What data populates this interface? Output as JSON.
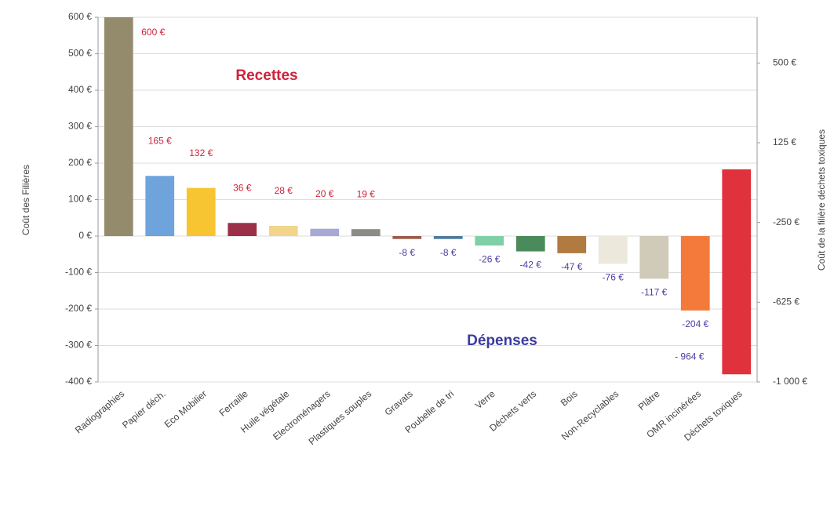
{
  "chart_data": {
    "type": "bar",
    "y_label": "Coût des Filières",
    "y2_label": "Coût de la filière déchets toxiques",
    "categories": [
      "Radiographies",
      "Papier déch.",
      "Eco Mobilier",
      "Ferraille",
      "Huile végétale",
      "Electroménagers",
      "Plastiques souples",
      "Gravats",
      "Poubelle de tri",
      "Verre",
      "Déchets verts",
      "Bois",
      "Non-Recyclables",
      "Plâtre",
      "OMR incinérées",
      "Déchets toxiques"
    ],
    "colors": [
      "#948a6c",
      "#6fa3dc",
      "#f6c531",
      "#9c3048",
      "#f2d58a",
      "#a6a9d6",
      "#8a8d86",
      "#9c5a4a",
      "#4d7a9c",
      "#7fd0a6",
      "#4b8a5a",
      "#b07a40",
      "#ece8dc",
      "#d0cbb8",
      "#f37a3a",
      "#e0323c"
    ],
    "series": [
      {
        "values": [
          600,
          165,
          132,
          36,
          28,
          20,
          19,
          -8,
          -8,
          -26,
          -42,
          -47,
          -76,
          -117,
          -204,
          null
        ],
        "value_labels": [
          "600 €",
          "165 €",
          "132 €",
          "36 €",
          "28 €",
          "20 €",
          "19 €",
          "-8 €",
          "-8 €",
          "-26 €",
          "-42 €",
          "-47 €",
          "-76 €",
          "-117 €",
          "-204 €",
          null
        ]
      },
      {
        "axis": "y2",
        "values": [
          null,
          null,
          null,
          null,
          null,
          null,
          null,
          null,
          null,
          null,
          null,
          null,
          null,
          null,
          null,
          -964
        ],
        "value_labels": [
          null,
          null,
          null,
          null,
          null,
          null,
          null,
          null,
          null,
          null,
          null,
          null,
          null,
          null,
          null,
          "- 964 €"
        ]
      }
    ],
    "label_colors": {
      "positive": "#d0213a",
      "negative": "#4b3fa6"
    },
    "annotations": [
      {
        "text": "Recettes",
        "color": "#d0213a"
      },
      {
        "text": "Dépenses",
        "color": "#3b3ca0"
      }
    ],
    "ylim": [
      -400,
      600
    ],
    "yticks": [
      {
        "value": -400,
        "label": "-400 €"
      },
      {
        "value": -300,
        "label": "-300 €"
      },
      {
        "value": -200,
        "label": "-200 €"
      },
      {
        "value": -100,
        "label": "-100 €"
      },
      {
        "value": 0,
        "label": "0 €"
      },
      {
        "value": 100,
        "label": "100 €"
      },
      {
        "value": 200,
        "label": "200 €"
      },
      {
        "value": 300,
        "label": "300 €"
      },
      {
        "value": 400,
        "label": "400 €"
      },
      {
        "value": 500,
        "label": "500 €"
      },
      {
        "value": 600,
        "label": "600 €"
      }
    ],
    "y2lim": [
      -1000,
      715
    ],
    "y2ticks": [
      {
        "value": -1000,
        "label": "-1 000 €"
      },
      {
        "value": -625,
        "label": "-625 €"
      },
      {
        "value": -250,
        "label": "-250 €"
      },
      {
        "value": 125,
        "label": "125 €"
      },
      {
        "value": 500,
        "label": "500 €"
      }
    ],
    "grid": true
  }
}
